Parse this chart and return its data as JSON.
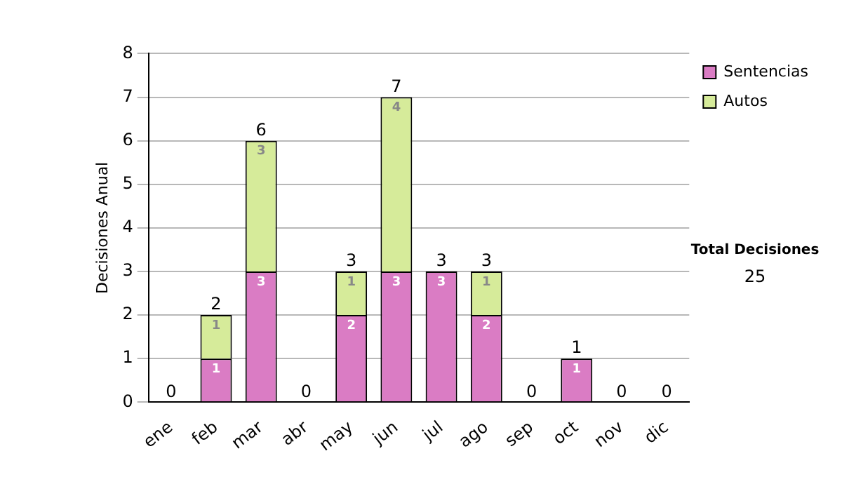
{
  "chart_data": {
    "type": "bar",
    "stacked": true,
    "ylabel": "Decisiones Anual",
    "categories": [
      "ene",
      "feb",
      "mar",
      "abr",
      "may",
      "jun",
      "jul",
      "ago",
      "sep",
      "oct",
      "nov",
      "dic"
    ],
    "series": [
      {
        "name": "Sentencias",
        "color": "#da7cc4",
        "values": [
          0,
          1,
          3,
          0,
          2,
          3,
          3,
          2,
          0,
          1,
          0,
          0
        ],
        "value_labels": [
          null,
          "1",
          "3",
          null,
          "2",
          "3",
          "3",
          "2",
          null,
          "1",
          null,
          null
        ]
      },
      {
        "name": "Autos",
        "color": "#d6eb9a",
        "values": [
          0,
          1,
          3,
          0,
          1,
          4,
          0,
          1,
          0,
          0,
          0,
          0
        ],
        "value_labels": [
          null,
          "1",
          "3",
          null,
          "1",
          "4",
          null,
          "1",
          null,
          null,
          null,
          null
        ]
      }
    ],
    "totals": [
      "0",
      "2",
      "6",
      "0",
      "3",
      "7",
      "3",
      "3",
      "0",
      "1",
      "0",
      "0"
    ],
    "ylim": [
      0,
      8
    ],
    "yticks": [
      0,
      1,
      2,
      3,
      4,
      5,
      6,
      7,
      8
    ],
    "grid": "y",
    "legend": "right",
    "annotations": [
      "Total Decisiones",
      "25"
    ]
  }
}
